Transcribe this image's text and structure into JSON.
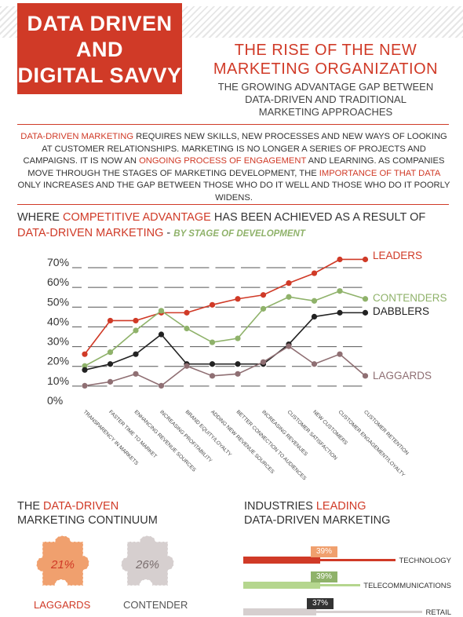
{
  "banner": {
    "line1": "DATA DRIVEN",
    "line2": "AND",
    "line3": "DIGITAL SAVVY"
  },
  "headline": {
    "line1": "THE RISE OF THE NEW",
    "line2": "MARKETING ORGANIZATION"
  },
  "subhead": {
    "line1": "THE GROWING ADVANTAGE GAP BETWEEN",
    "line2": "DATA-DRIVEN AND TRADITIONAL",
    "line3": "MARKETING APPROACHES"
  },
  "intro": {
    "p1_red": "DATA-DRIVEN MARKETING",
    "p1": " REQUIRES NEW SKILLS, NEW PROCESSES AND NEW WAYS OF LOOKING AT CUSTOMER RELATIONSHIPS. MARKETING IS NO LONGER A SERIES OF PROJECTS AND CAMPAIGNS. IT IS NOW AN ",
    "p2_red": "ONGOING PROCESS OF ENGAGEMENT",
    "p2": " AND LEARNING. AS COMPANIES MOVE THROUGH THE STAGES OF MARKETING DEVELOPMENT, THE ",
    "p3_red": "IMPORTANCE OF THAT DATA",
    "p3": " ONLY INCREASES AND THE GAP BETWEEN THOSE WHO DO IT WELL AND THOSE WHO DO IT POORLY WIDENS."
  },
  "section": {
    "a": "WHERE ",
    "a_red": "COMPETITIVE ADVANTAGE",
    "b": " HAS BEEN ACHIEVED AS A RESULT OF",
    "c_red": "DATA-DRIVEN MARKETING",
    "c": " - ",
    "d_green": "BY STAGE OF DEVELOPMENT"
  },
  "chart_data": {
    "type": "line",
    "title": "",
    "xlabel": "",
    "ylabel": "",
    "ylim": [
      0,
      70
    ],
    "yticks": [
      "0%",
      "10%",
      "20%",
      "30%",
      "40%",
      "50%",
      "60%",
      "70%"
    ],
    "categories": [
      "TRANSPARENCY IN MARKETS",
      "FASTER TIME TO MARKET",
      "ENHANCING REVENUE SOURCES",
      "INCREASING PROFITABILITY",
      "BRAND EQUITY/LOYALTY",
      "ADDING NEW REVENUE SOURCES",
      "BETTER CONNECTION TO AUDIENCES",
      "INCREASING REVENUES",
      "CUSTOMER SATISFACTION",
      "NEW CUSTOMERS",
      "CUSTOMER ENGAGEMENT/LOYALTY",
      "CUSTOMER RETENTION"
    ],
    "series": [
      {
        "name": "LEADERS",
        "color": "#d03a27",
        "values": [
          23,
          40,
          40,
          44,
          44,
          48,
          51,
          53,
          59,
          64,
          71,
          71
        ]
      },
      {
        "name": "CONTENDERS",
        "color": "#8fb26a",
        "values": [
          17,
          24,
          35,
          45,
          36,
          29,
          31,
          46,
          52,
          50,
          55,
          51
        ]
      },
      {
        "name": "DABBLERS",
        "color": "#222222",
        "values": [
          15,
          18,
          23,
          33,
          18,
          18,
          18,
          18,
          28,
          42,
          44,
          44
        ]
      },
      {
        "name": "LAGGARDS",
        "color": "#8f6f73",
        "values": [
          7,
          9,
          13,
          7,
          17,
          12,
          13,
          19,
          27,
          18,
          23,
          12
        ]
      }
    ],
    "legend_placement": "right"
  },
  "continuum": {
    "a": "THE ",
    "a_red": "DATA-DRIVEN",
    "b": "MARKETING CONTINUUM"
  },
  "puzzles": [
    {
      "pct": "21%",
      "label": "LAGGARDS",
      "color": "#f0a06e",
      "label_color": "#d03a27"
    },
    {
      "pct": "26%",
      "label": "CONTENDER",
      "color": "#d6cfcf",
      "label_color": "#555555"
    }
  ],
  "industries": {
    "a": "INDUSTRIES ",
    "a_red": "LEADING",
    "b": "DATA-DRIVEN MARKETING",
    "rows": [
      {
        "pct": "39%",
        "value": 39,
        "name": "TECHNOLOGY",
        "color": "#d03a27",
        "badge": "#f0a06e"
      },
      {
        "pct": "39%",
        "value": 39,
        "name": "TELECOMMUNICATIONS",
        "color": "#b5d68e",
        "badge": "#8fb26a"
      },
      {
        "pct": "37%",
        "value": 37,
        "name": "RETAIL",
        "color": "#d6cfcf",
        "badge": "#333333"
      }
    ]
  }
}
